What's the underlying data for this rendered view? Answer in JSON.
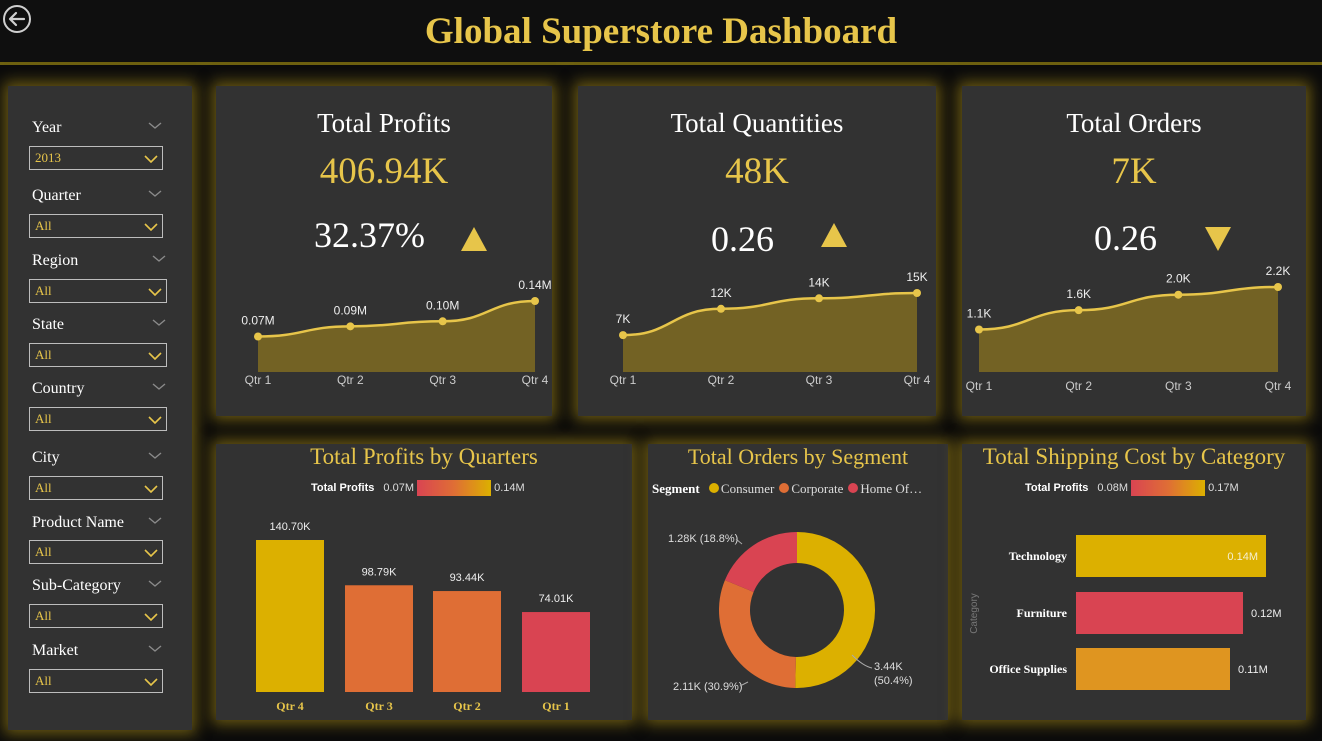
{
  "header": {
    "title": "Global Superstore Dashboard"
  },
  "filters": [
    {
      "label": "Year",
      "value": "2013"
    },
    {
      "label": "Quarter",
      "value": "All"
    },
    {
      "label": "Region",
      "value": "All"
    },
    {
      "label": "State",
      "value": "All"
    },
    {
      "label": "Country",
      "value": "All"
    },
    {
      "label": "City",
      "value": "All"
    },
    {
      "label": "Product Name",
      "value": "All"
    },
    {
      "label": "Sub-Category",
      "value": "All"
    },
    {
      "label": "Market",
      "value": "All"
    }
  ],
  "kpis": [
    {
      "title": "Total Profits",
      "value": "406.94K",
      "change": "32.37%",
      "trend": "up",
      "chart_data": {
        "type": "area",
        "x": [
          "Qtr 1",
          "Qtr 2",
          "Qtr 3",
          "Qtr 4"
        ],
        "values": [
          0.07,
          0.09,
          0.1,
          0.14
        ],
        "labels": [
          "0.07M",
          "0.09M",
          "0.10M",
          "0.14M"
        ]
      }
    },
    {
      "title": "Total Quantities",
      "value": "48K",
      "change": "0.26",
      "trend": "up",
      "chart_data": {
        "type": "area",
        "x": [
          "Qtr 1",
          "Qtr 2",
          "Qtr 3",
          "Qtr 4"
        ],
        "values": [
          7,
          12,
          14,
          15
        ],
        "labels": [
          "7K",
          "12K",
          "14K",
          "15K"
        ]
      }
    },
    {
      "title": "Total Orders",
      "value": "7K",
      "change": "0.26",
      "trend": "down",
      "chart_data": {
        "type": "area",
        "x": [
          "Qtr 1",
          "Qtr 2",
          "Qtr 3",
          "Qtr 4"
        ],
        "values": [
          1.1,
          1.6,
          2.0,
          2.2
        ],
        "labels": [
          "1.1K",
          "1.6K",
          "2.0K",
          "2.2K"
        ]
      }
    }
  ],
  "profits_by_quarter": {
    "title": "Total Profits by Quarters",
    "legend": {
      "name": "Total Profits",
      "min": "0.07M",
      "max": "0.14M"
    },
    "chart_data": {
      "type": "bar",
      "categories": [
        "Qtr 4",
        "Qtr 3",
        "Qtr 2",
        "Qtr 1"
      ],
      "values": [
        140.7,
        98.79,
        93.44,
        74.01
      ],
      "labels": [
        "140.70K",
        "98.79K",
        "93.44K",
        "74.01K"
      ],
      "colors": [
        "#dcb000",
        "#df6e35",
        "#df6e35",
        "#d94452"
      ]
    }
  },
  "orders_by_segment": {
    "title": "Total Orders by Segment",
    "legend_title": "Segment",
    "legend": [
      {
        "name": "Consumer",
        "color": "#dcb000"
      },
      {
        "name": "Corporate",
        "color": "#df6e35"
      },
      {
        "name": "Home Of…",
        "color": "#d94452"
      }
    ],
    "chart_data": {
      "type": "pie",
      "values": [
        3.44,
        2.11,
        1.28
      ],
      "labels": [
        "3.44K",
        "2.11K (30.9%)",
        "1.28K (18.8%)"
      ],
      "percent_label": "(50.4%)",
      "colors": [
        "#dcb000",
        "#df6e35",
        "#d94452"
      ]
    }
  },
  "shipping_by_category": {
    "title": "Total Shipping Cost by Category",
    "legend": {
      "name": "Total Profits",
      "min": "0.08M",
      "max": "0.17M"
    },
    "axis_label": "Category",
    "chart_data": {
      "type": "bar",
      "categories": [
        "Technology",
        "Furniture",
        "Office Supplies"
      ],
      "values": [
        0.14,
        0.12,
        0.11
      ],
      "labels": [
        "0.14M",
        "0.12M",
        "0.11M"
      ],
      "colors": [
        "#dcb000",
        "#d94452",
        "#df9520"
      ]
    }
  }
}
